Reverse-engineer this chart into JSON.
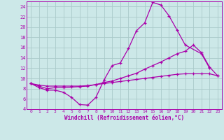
{
  "xlabel": "Windchill (Refroidissement éolien,°C)",
  "bg_color": "#cce8e8",
  "grid_color": "#aacaca",
  "line_color": "#aa00aa",
  "spine_color": "#aa00aa",
  "xlim": [
    -0.5,
    23.5
  ],
  "ylim": [
    4,
    25
  ],
  "yticks": [
    4,
    6,
    8,
    10,
    12,
    14,
    16,
    18,
    20,
    22,
    24
  ],
  "xticks": [
    0,
    1,
    2,
    3,
    4,
    5,
    6,
    7,
    8,
    9,
    10,
    11,
    12,
    13,
    14,
    15,
    16,
    17,
    18,
    19,
    20,
    21,
    22,
    23
  ],
  "series1_x": [
    0,
    1,
    2,
    3,
    4,
    5,
    6,
    7,
    8,
    9,
    10,
    11,
    12,
    13,
    14,
    15,
    16,
    17,
    18,
    19,
    21,
    22
  ],
  "series1_y": [
    9.0,
    8.2,
    7.7,
    7.7,
    7.3,
    6.3,
    4.9,
    4.8,
    6.3,
    9.7,
    12.5,
    13.0,
    15.8,
    19.3,
    20.8,
    24.8,
    24.3,
    22.2,
    19.4,
    16.5,
    14.8,
    12.0
  ],
  "series2_x": [
    0,
    1,
    2,
    3,
    4,
    5,
    6,
    7,
    8,
    9,
    10,
    11,
    12,
    13,
    14,
    15,
    16,
    17,
    18,
    19,
    20,
    21,
    22,
    23
  ],
  "series2_y": [
    9.0,
    8.5,
    8.0,
    8.2,
    8.2,
    8.3,
    8.4,
    8.5,
    8.8,
    9.2,
    9.5,
    10.0,
    10.5,
    11.0,
    11.8,
    12.5,
    13.2,
    14.0,
    14.8,
    15.3,
    16.5,
    15.0,
    12.2,
    10.5
  ],
  "series3_x": [
    0,
    1,
    2,
    3,
    4,
    5,
    6,
    7,
    8,
    9,
    10,
    11,
    12,
    13,
    14,
    15,
    16,
    17,
    18,
    19,
    20,
    21,
    22,
    23
  ],
  "series3_y": [
    9.0,
    8.7,
    8.5,
    8.5,
    8.5,
    8.5,
    8.5,
    8.6,
    8.8,
    9.0,
    9.2,
    9.4,
    9.6,
    9.8,
    10.0,
    10.2,
    10.4,
    10.6,
    10.8,
    10.9,
    10.9,
    10.9,
    10.9,
    10.5
  ]
}
